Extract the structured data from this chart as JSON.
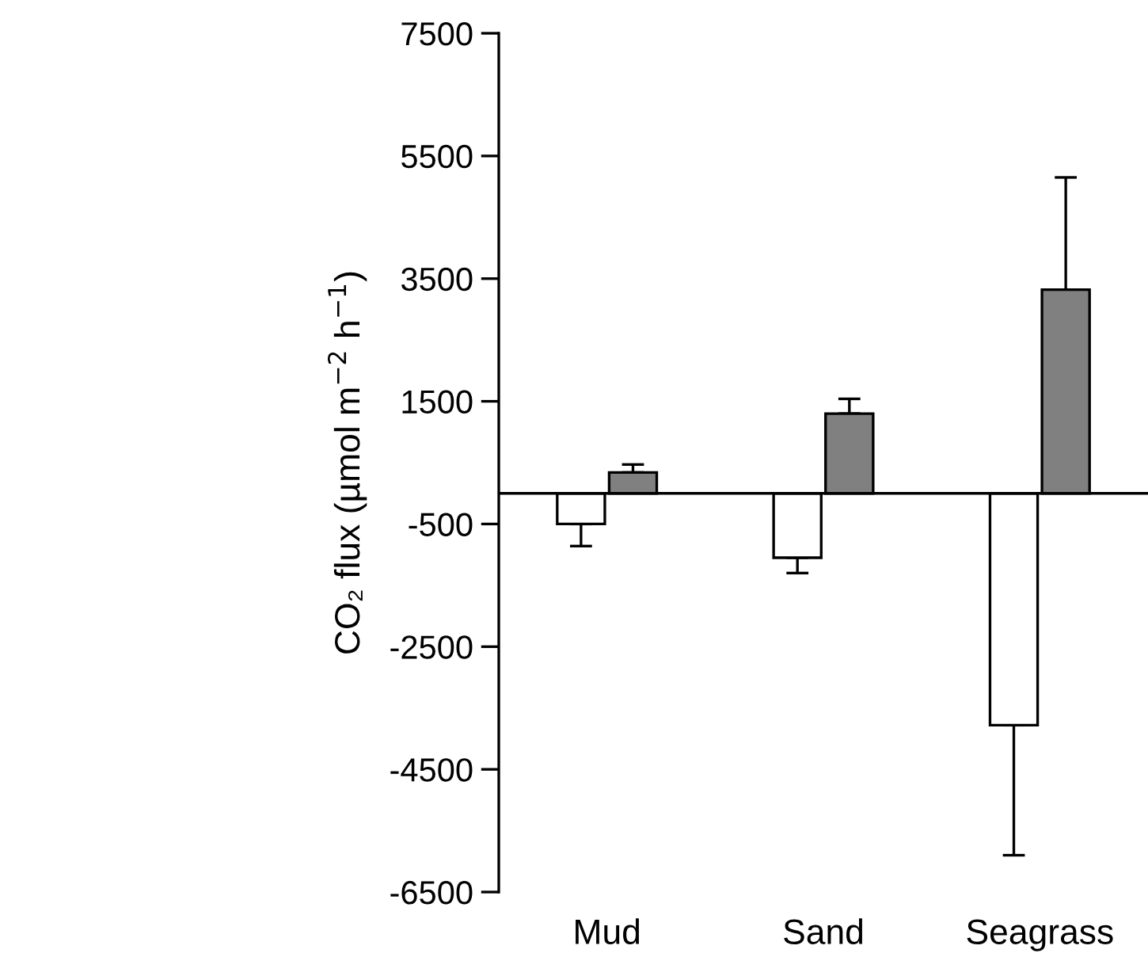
{
  "chart_data": {
    "type": "bar",
    "ylabel": "CO₂ flux (µmol m$^{−2}$ h$^{−1}$)",
    "categories": [
      "Mud",
      "Sand",
      "Seagrass"
    ],
    "series": [
      {
        "color": "#ffffff",
        "values": [
          -500,
          -1050,
          -3780
        ],
        "errors": [
          [
            -860,
            -500
          ],
          [
            -1300,
            -1050
          ],
          [
            -5900,
            -3780
          ]
        ]
      },
      {
        "color": "#808080",
        "values": [
          340,
          1300,
          3320
        ],
        "errors": [
          [
            340,
            470
          ],
          [
            1300,
            1540
          ],
          [
            3320,
            5150
          ]
        ]
      }
    ],
    "ylim": [
      -6500,
      7500
    ],
    "yticks": [
      -6500,
      -4500,
      -2500,
      -500,
      1500,
      3500,
      5500,
      7500
    ],
    "grid": false
  }
}
